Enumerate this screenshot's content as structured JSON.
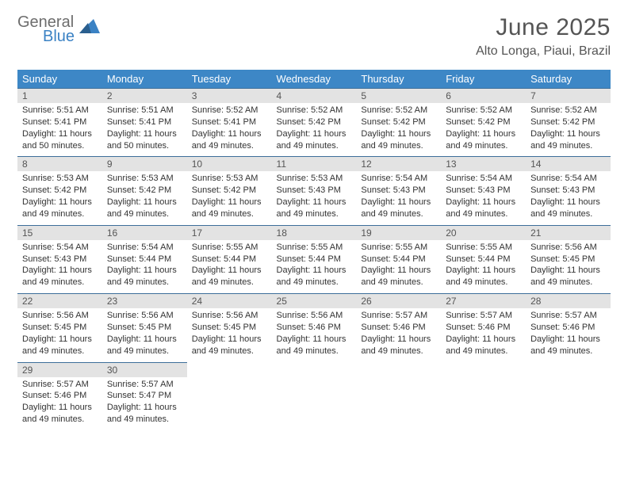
{
  "brand": {
    "general": "General",
    "blue": "Blue"
  },
  "header": {
    "title": "June 2025",
    "location": "Alto Longa, Piaui, Brazil"
  },
  "colors": {
    "header_bg": "#3d87c6",
    "header_fg": "#ffffff",
    "daynum_bg": "#e3e3e3",
    "rule": "#3d6e9a",
    "text": "#333333",
    "logo_gray": "#6d6d6d",
    "logo_blue": "#3b82c4"
  },
  "dayNames": [
    "Sunday",
    "Monday",
    "Tuesday",
    "Wednesday",
    "Thursday",
    "Friday",
    "Saturday"
  ],
  "weeks": [
    [
      {
        "n": "1",
        "sr": "5:51 AM",
        "ss": "5:41 PM",
        "dl": "11 hours and 50 minutes."
      },
      {
        "n": "2",
        "sr": "5:51 AM",
        "ss": "5:41 PM",
        "dl": "11 hours and 50 minutes."
      },
      {
        "n": "3",
        "sr": "5:52 AM",
        "ss": "5:41 PM",
        "dl": "11 hours and 49 minutes."
      },
      {
        "n": "4",
        "sr": "5:52 AM",
        "ss": "5:42 PM",
        "dl": "11 hours and 49 minutes."
      },
      {
        "n": "5",
        "sr": "5:52 AM",
        "ss": "5:42 PM",
        "dl": "11 hours and 49 minutes."
      },
      {
        "n": "6",
        "sr": "5:52 AM",
        "ss": "5:42 PM",
        "dl": "11 hours and 49 minutes."
      },
      {
        "n": "7",
        "sr": "5:52 AM",
        "ss": "5:42 PM",
        "dl": "11 hours and 49 minutes."
      }
    ],
    [
      {
        "n": "8",
        "sr": "5:53 AM",
        "ss": "5:42 PM",
        "dl": "11 hours and 49 minutes."
      },
      {
        "n": "9",
        "sr": "5:53 AM",
        "ss": "5:42 PM",
        "dl": "11 hours and 49 minutes."
      },
      {
        "n": "10",
        "sr": "5:53 AM",
        "ss": "5:42 PM",
        "dl": "11 hours and 49 minutes."
      },
      {
        "n": "11",
        "sr": "5:53 AM",
        "ss": "5:43 PM",
        "dl": "11 hours and 49 minutes."
      },
      {
        "n": "12",
        "sr": "5:54 AM",
        "ss": "5:43 PM",
        "dl": "11 hours and 49 minutes."
      },
      {
        "n": "13",
        "sr": "5:54 AM",
        "ss": "5:43 PM",
        "dl": "11 hours and 49 minutes."
      },
      {
        "n": "14",
        "sr": "5:54 AM",
        "ss": "5:43 PM",
        "dl": "11 hours and 49 minutes."
      }
    ],
    [
      {
        "n": "15",
        "sr": "5:54 AM",
        "ss": "5:43 PM",
        "dl": "11 hours and 49 minutes."
      },
      {
        "n": "16",
        "sr": "5:54 AM",
        "ss": "5:44 PM",
        "dl": "11 hours and 49 minutes."
      },
      {
        "n": "17",
        "sr": "5:55 AM",
        "ss": "5:44 PM",
        "dl": "11 hours and 49 minutes."
      },
      {
        "n": "18",
        "sr": "5:55 AM",
        "ss": "5:44 PM",
        "dl": "11 hours and 49 minutes."
      },
      {
        "n": "19",
        "sr": "5:55 AM",
        "ss": "5:44 PM",
        "dl": "11 hours and 49 minutes."
      },
      {
        "n": "20",
        "sr": "5:55 AM",
        "ss": "5:44 PM",
        "dl": "11 hours and 49 minutes."
      },
      {
        "n": "21",
        "sr": "5:56 AM",
        "ss": "5:45 PM",
        "dl": "11 hours and 49 minutes."
      }
    ],
    [
      {
        "n": "22",
        "sr": "5:56 AM",
        "ss": "5:45 PM",
        "dl": "11 hours and 49 minutes."
      },
      {
        "n": "23",
        "sr": "5:56 AM",
        "ss": "5:45 PM",
        "dl": "11 hours and 49 minutes."
      },
      {
        "n": "24",
        "sr": "5:56 AM",
        "ss": "5:45 PM",
        "dl": "11 hours and 49 minutes."
      },
      {
        "n": "25",
        "sr": "5:56 AM",
        "ss": "5:46 PM",
        "dl": "11 hours and 49 minutes."
      },
      {
        "n": "26",
        "sr": "5:57 AM",
        "ss": "5:46 PM",
        "dl": "11 hours and 49 minutes."
      },
      {
        "n": "27",
        "sr": "5:57 AM",
        "ss": "5:46 PM",
        "dl": "11 hours and 49 minutes."
      },
      {
        "n": "28",
        "sr": "5:57 AM",
        "ss": "5:46 PM",
        "dl": "11 hours and 49 minutes."
      }
    ],
    [
      {
        "n": "29",
        "sr": "5:57 AM",
        "ss": "5:46 PM",
        "dl": "11 hours and 49 minutes."
      },
      {
        "n": "30",
        "sr": "5:57 AM",
        "ss": "5:47 PM",
        "dl": "11 hours and 49 minutes."
      },
      null,
      null,
      null,
      null,
      null
    ]
  ],
  "labels": {
    "sunrise": "Sunrise: ",
    "sunset": "Sunset: ",
    "daylight": "Daylight: "
  }
}
